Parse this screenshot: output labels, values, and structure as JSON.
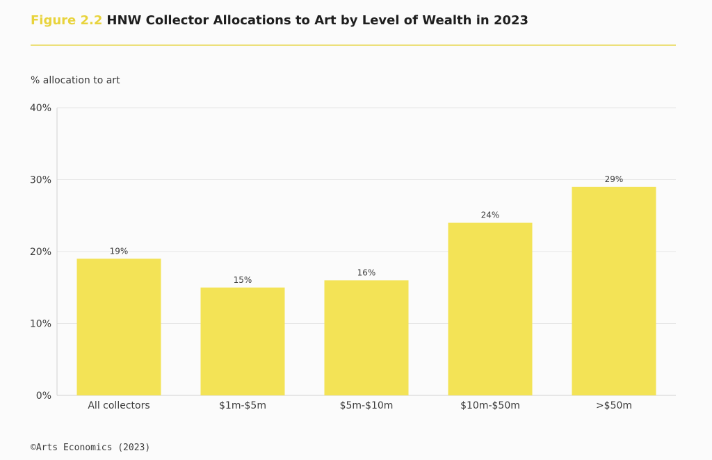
{
  "figure_label": "Figure 2.2",
  "title": "HNW Collector Allocations to Art by Level of Wealth in 2023",
  "source": "©Arts Economics (2023)",
  "colors": {
    "bar": "#f3e356",
    "accent": "#e8d33c",
    "grid": "#e6e6e6",
    "axis": "#d0d0d0"
  },
  "chart_data": {
    "type": "bar",
    "title": "HNW Collector Allocations to Art by Level of Wealth in 2023",
    "xlabel": "",
    "ylabel": "% allocation to art",
    "categories": [
      "All collectors",
      "$1m-$5m",
      "$5m-$10m",
      "$10m-$50m",
      ">$50m"
    ],
    "values": [
      19,
      15,
      16,
      24,
      29
    ],
    "data_labels": [
      "19%",
      "15%",
      "16%",
      "24%",
      "29%"
    ],
    "ylim": [
      0,
      40
    ],
    "yticks": [
      0,
      10,
      20,
      30,
      40
    ],
    "ytick_labels": [
      "0%",
      "10%",
      "20%",
      "30%",
      "40%"
    ],
    "grid": true,
    "legend": "none"
  }
}
